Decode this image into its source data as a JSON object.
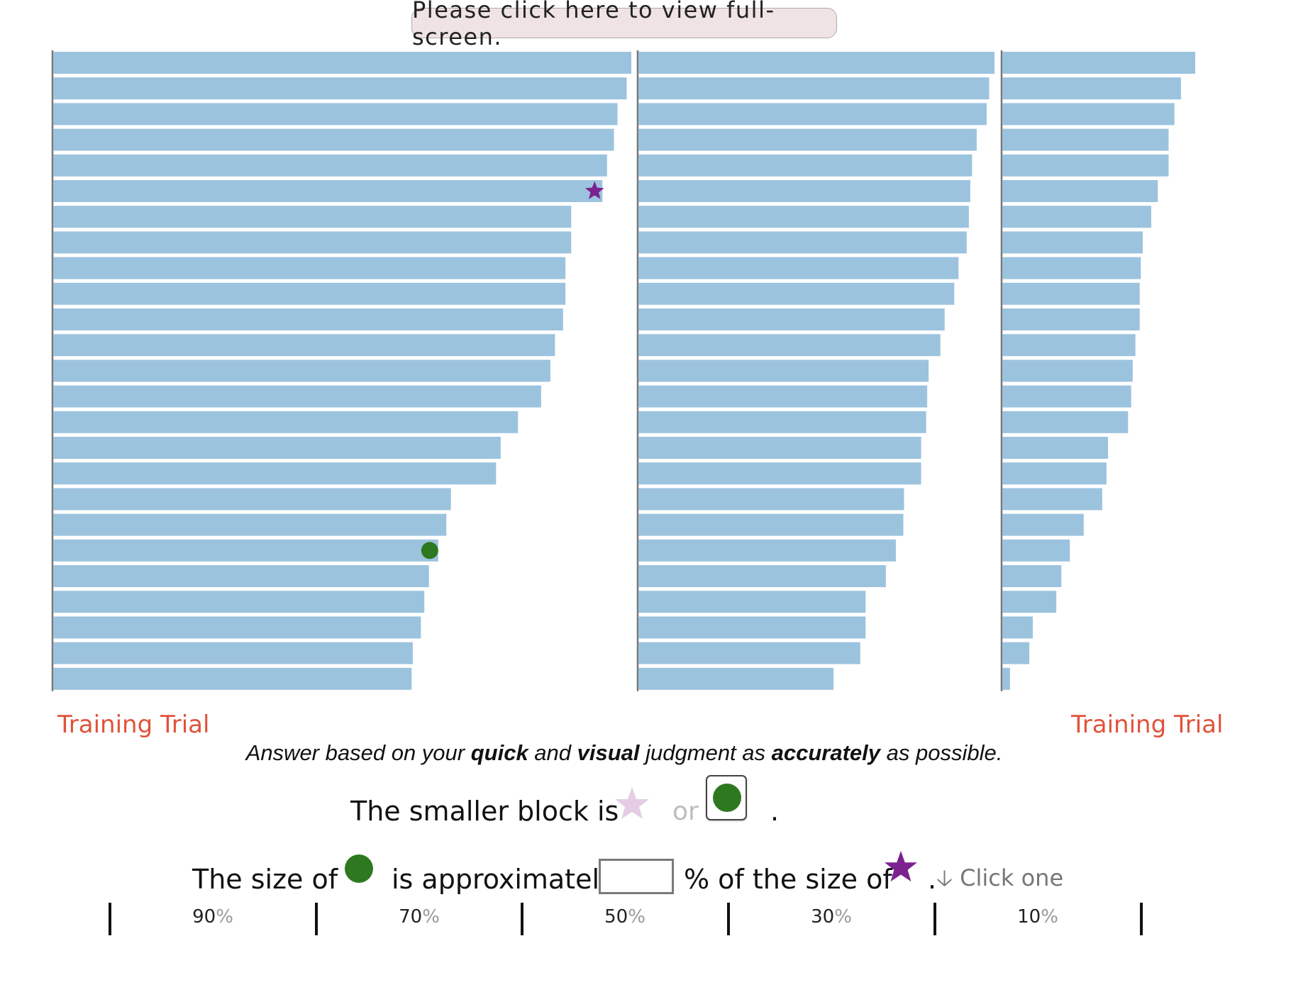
{
  "header": {
    "fullscreen_label": "Please click here to view full-screen."
  },
  "labels": {
    "training_left": "Training Trial",
    "training_right": "Training Trial"
  },
  "instruction": {
    "part1": "Answer based on your ",
    "quick": "quick",
    "part2": " and ",
    "visual": "visual",
    "part3": " judgment as ",
    "accurately": "accurately",
    "part4": " as possible."
  },
  "question1": {
    "prefix": "The smaller block is",
    "or": "or",
    "suffix": "."
  },
  "question2": {
    "prefix": "The size of",
    "middle": "is approximately",
    "suffix": "% of the size of",
    "end": ".",
    "input_value": "",
    "hint": "Click one"
  },
  "scale": {
    "labels": [
      "90",
      "70",
      "50",
      "30",
      "10"
    ],
    "symbol": "%"
  },
  "colors": {
    "bar": "#9cc3de",
    "axis": "#777777",
    "star": "#7b2290",
    "star_faded": "#e5cde5",
    "circle": "#2e7820",
    "training": "#e0533a"
  },
  "chart_data": {
    "type": "bar",
    "orientation": "horizontal",
    "bar_scale_max": 1000,
    "columns": [
      {
        "values": [
          1000,
          992,
          976,
          970,
          958,
          950,
          896,
          896,
          886,
          886,
          882,
          868,
          860,
          844,
          804,
          774,
          766,
          688,
          680,
          666,
          650,
          642,
          636,
          622,
          620
        ],
        "markers": [
          {
            "shape": "star",
            "bar_index": 5
          },
          {
            "shape": "circle",
            "bar_index": 19
          }
        ]
      },
      {
        "values": [
          1000,
          985,
          978,
          950,
          937,
          932,
          928,
          922,
          899,
          887,
          860,
          848,
          815,
          811,
          808,
          794,
          794,
          746,
          744,
          723,
          695,
          638,
          638,
          623,
          548
        ]
      },
      {
        "values": [
          1000,
          926,
          892,
          862,
          862,
          806,
          772,
          728,
          718,
          712,
          712,
          690,
          676,
          668,
          652,
          548,
          540,
          518,
          422,
          350,
          306,
          280,
          158,
          140,
          40
        ]
      }
    ]
  }
}
